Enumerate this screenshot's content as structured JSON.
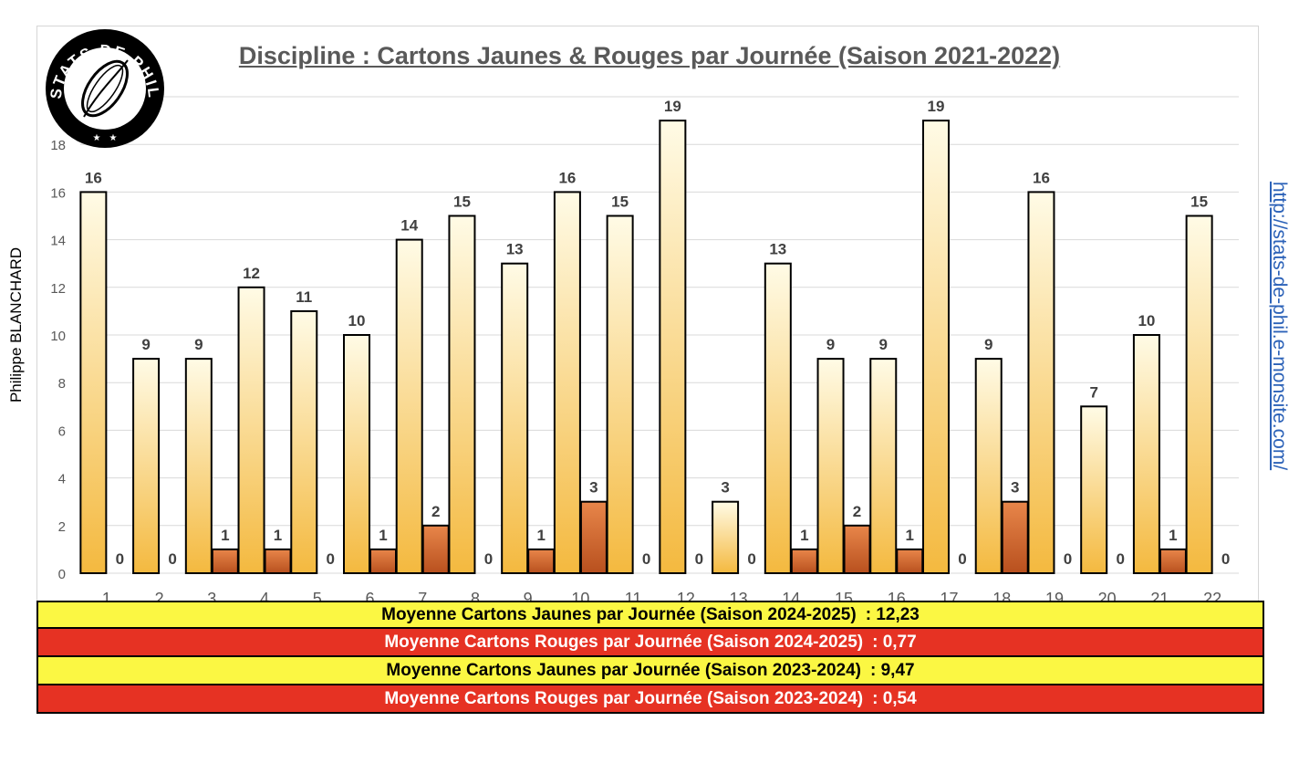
{
  "chart_data": {
    "type": "bar",
    "title": "Discipline : Cartons Jaunes & Rouges par Journée (Saison 2021-2022)",
    "categories": [
      "1",
      "2",
      "3",
      "4",
      "5",
      "6",
      "7",
      "8",
      "9",
      "10",
      "11",
      "12",
      "13",
      "14",
      "15",
      "16",
      "17",
      "18",
      "19",
      "20",
      "21",
      "22"
    ],
    "series": [
      {
        "values": [
          16,
          9,
          9,
          12,
          11,
          10,
          14,
          15,
          13,
          16,
          15,
          19,
          3,
          13,
          9,
          9,
          19,
          9,
          16,
          7,
          10,
          15
        ]
      },
      {
        "values": [
          0,
          0,
          1,
          1,
          0,
          1,
          2,
          0,
          1,
          3,
          0,
          0,
          0,
          1,
          2,
          1,
          0,
          3,
          0,
          0,
          1,
          0
        ]
      }
    ],
    "ylim": [
      0,
      20
    ],
    "yticks": [
      0,
      2,
      4,
      6,
      8,
      10,
      12,
      14,
      16,
      18
    ],
    "grid": true,
    "data_labels": true,
    "xlabel": "",
    "ylabel": ""
  },
  "colors": {
    "yellow_bar_top": "#fffbe6",
    "yellow_bar_bottom": "#f4b93f",
    "red_bar_top": "#e8864a",
    "red_bar_bottom": "#b8501e",
    "gridline": "#d9d9d9",
    "row_yellow": "#fbf743",
    "row_red": "#e63223",
    "link": "#2c62b8"
  },
  "logo": {
    "text": "STATS DE PHIL",
    "icon": "rugby-ball-icon"
  },
  "author": "Philippe BLANCHARD",
  "site": "http://stats-de-phil.e-monsite.com/",
  "summary": [
    {
      "label": "Moyenne Cartons Jaunes par Journée (Saison 2024-2025)",
      "value": ": 12,23",
      "color": "yellow"
    },
    {
      "label": "Moyenne Cartons Rouges par Journée (Saison 2024-2025)",
      "value": ": 0,77",
      "color": "red"
    },
    {
      "label": "Moyenne Cartons Jaunes par Journée (Saison 2023-2024)",
      "value": ": 9,47",
      "color": "yellow"
    },
    {
      "label": "Moyenne Cartons Rouges par Journée (Saison 2023-2024)",
      "value": ": 0,54",
      "color": "red"
    }
  ]
}
